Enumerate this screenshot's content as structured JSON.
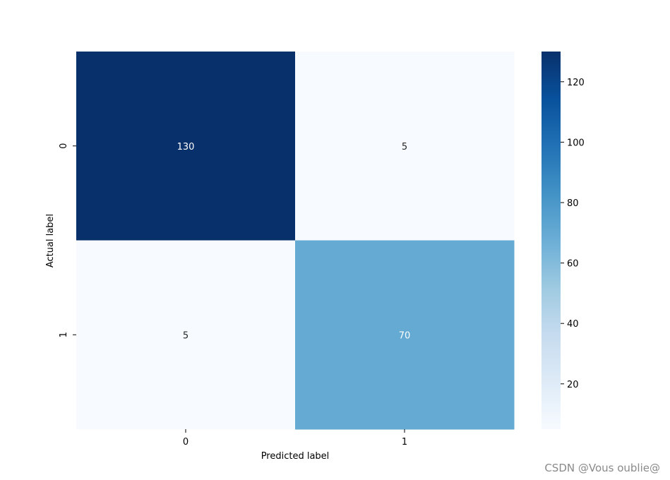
{
  "chart_data": {
    "type": "heatmap",
    "title": "",
    "xlabel": "Predicted label",
    "ylabel": "Actual label",
    "x_categories": [
      "0",
      "1"
    ],
    "y_categories": [
      "0",
      "1"
    ],
    "values": [
      [
        130,
        5
      ],
      [
        5,
        70
      ]
    ],
    "colormap": "Blues",
    "colorbar": {
      "ticks": [
        20,
        40,
        60,
        80,
        100,
        120
      ],
      "range": [
        5,
        130
      ]
    },
    "grid": false
  },
  "watermark": "CSDN @Vous oublie@"
}
